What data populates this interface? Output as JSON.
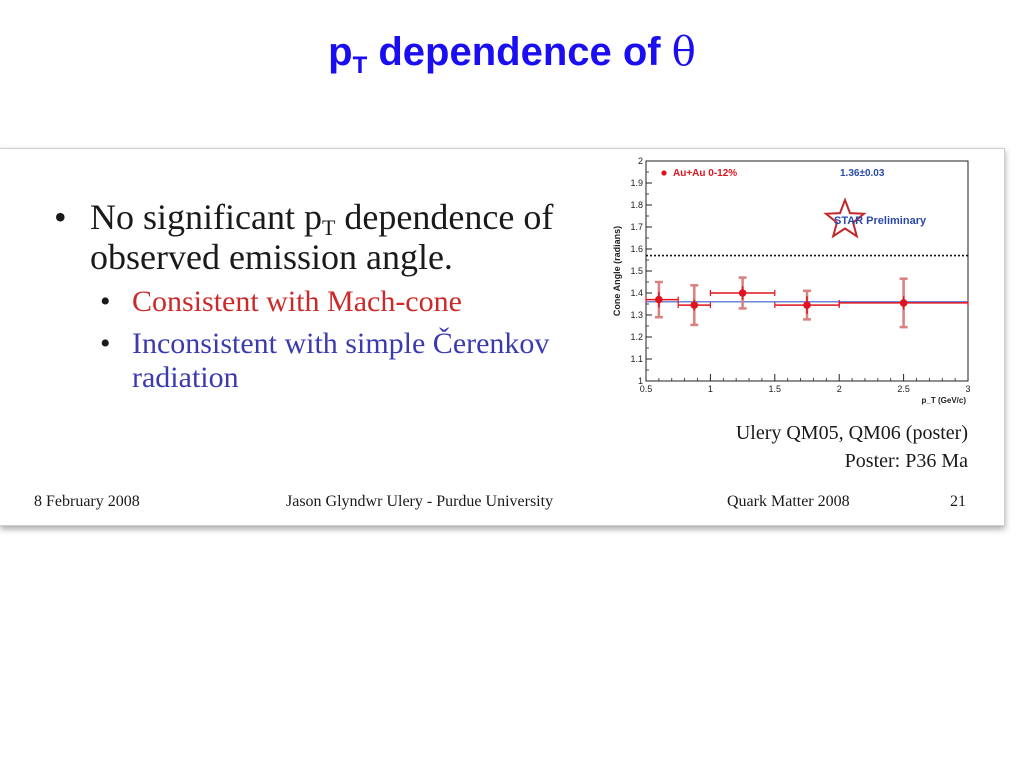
{
  "title": {
    "prefix": "p",
    "sub": "T",
    "rest": " dependence of ",
    "symbol": "θ"
  },
  "bullets": {
    "main_1": "No significant p",
    "main_sub": "T",
    "main_2": " dependence of observed emission angle.",
    "sub_1": "Consistent with Mach-cone",
    "sub_2": "Inconsistent with simple Čerenkov radiation",
    "bullet_char": "•"
  },
  "credits": {
    "line1": "Ulery QM05, QM06 (poster)",
    "line2": "Poster: P36 Ma"
  },
  "footer": {
    "date": "8 February 2008",
    "author": "Jason Glyndwr Ulery - Purdue University",
    "conference": "Quark Matter 2008",
    "page": "21"
  },
  "colors": {
    "title": "#1a0df2",
    "consistent": "#cc2a2a",
    "inconsistent": "#3b3bb0",
    "data": "#e0141e",
    "fit": "#3a5fcd"
  },
  "chart_data": {
    "type": "scatter",
    "ylabel": "Cone Angle (radians)",
    "xlabel": "p_T (GeV/c)",
    "xlim": [
      0.5,
      3
    ],
    "ylim": [
      1,
      2
    ],
    "xticks": [
      0.5,
      1,
      1.5,
      2,
      2.5,
      3
    ],
    "xtick_labels": [
      "0.5",
      "1",
      "1.5",
      "2",
      "2.5",
      "3"
    ],
    "yticks": [
      1,
      1.1,
      1.2,
      1.3,
      1.4,
      1.5,
      1.6,
      1.7,
      1.8,
      1.9,
      2
    ],
    "ytick_labels": [
      "1",
      "1.1",
      "1.2",
      "1.3",
      "1.4",
      "1.5",
      "1.6",
      "1.7",
      "1.8",
      "1.9",
      "2"
    ],
    "legend": "Au+Au 0-12%",
    "annotation": "1.36±0.03",
    "logo_text": "STAR Preliminary",
    "reference_line": 1.57,
    "fit_value": 1.36,
    "points": [
      {
        "x": 0.6,
        "y": 1.37,
        "xlo": 0.5,
        "xhi": 0.75,
        "ystat": 0.035,
        "ysys": 0.08
      },
      {
        "x": 0.875,
        "y": 1.345,
        "xlo": 0.75,
        "xhi": 1.0,
        "ystat": 0.025,
        "ysys": 0.09
      },
      {
        "x": 1.25,
        "y": 1.4,
        "xlo": 1.0,
        "xhi": 1.5,
        "ystat": 0.03,
        "ysys": 0.07
      },
      {
        "x": 1.75,
        "y": 1.345,
        "xlo": 1.5,
        "xhi": 2.0,
        "ystat": 0.04,
        "ysys": 0.065
      },
      {
        "x": 2.5,
        "y": 1.355,
        "xlo": 2.0,
        "xhi": 3.0,
        "ystat": 0.03,
        "ysys": 0.11
      }
    ]
  }
}
